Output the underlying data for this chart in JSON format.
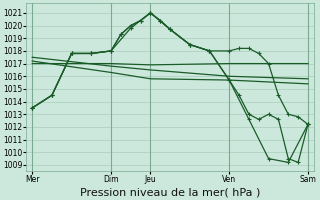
{
  "bg_color": "#cce8dc",
  "grid_color": "#aaccbb",
  "line_color": "#1a5c28",
  "xlabel": "Pression niveau de la mer( hPa )",
  "xlabel_fontsize": 8,
  "ylim": [
    1008.5,
    1021.8
  ],
  "yticks": [
    1009,
    1010,
    1011,
    1012,
    1013,
    1014,
    1015,
    1016,
    1017,
    1018,
    1019,
    1020,
    1021
  ],
  "xtick_labels": [
    "Mer",
    "Dim",
    "Jeu",
    "Ven",
    "Sam"
  ],
  "xtick_positions": [
    0,
    2,
    3,
    5,
    7
  ],
  "vline_positions": [
    0,
    2,
    3,
    5,
    7
  ],
  "series_main1": {
    "x": [
      0,
      0.5,
      1.0,
      1.5,
      2.0,
      2.25,
      2.5,
      2.75,
      3.0,
      3.25,
      3.5,
      4.0,
      4.5,
      5.0,
      5.25,
      5.5,
      5.75,
      6.0,
      6.25,
      6.5,
      6.75,
      7.0
    ],
    "y": [
      1013.5,
      1014.5,
      1017.8,
      1017.8,
      1018.0,
      1019.3,
      1020.0,
      1020.4,
      1021.0,
      1020.4,
      1019.7,
      1018.5,
      1018.0,
      1018.0,
      1018.2,
      1018.2,
      1017.8,
      1017.0,
      1014.5,
      1013.0,
      1012.8,
      1012.2
    ]
  },
  "series_flat": {
    "x": [
      0,
      2,
      3,
      5,
      7
    ],
    "y": [
      1017.0,
      1017.0,
      1016.9,
      1017.0,
      1017.0
    ]
  },
  "series_decline1": {
    "x": [
      0,
      2,
      3,
      5,
      7
    ],
    "y": [
      1017.5,
      1016.8,
      1016.5,
      1016.0,
      1015.8
    ]
  },
  "series_decline2": {
    "x": [
      0,
      2,
      3,
      5,
      7
    ],
    "y": [
      1017.2,
      1016.3,
      1015.8,
      1015.7,
      1015.4
    ]
  },
  "series_main2": {
    "x": [
      0,
      0.5,
      1.0,
      1.5,
      2.0,
      2.25,
      2.5,
      2.75,
      3.0,
      3.25,
      3.5,
      4.0,
      4.5,
      5.0,
      5.25,
      5.5,
      5.75,
      6.0,
      6.25,
      6.5,
      6.75,
      7.0
    ],
    "y": [
      1013.5,
      1014.5,
      1017.8,
      1017.8,
      1018.0,
      1019.3,
      1020.0,
      1020.4,
      1021.0,
      1020.4,
      1019.7,
      1018.5,
      1018.0,
      1015.7,
      1014.5,
      1013.0,
      1012.6,
      1013.0,
      1012.6,
      1009.5,
      1009.2,
      1012.2
    ]
  },
  "series_main3": {
    "x": [
      0,
      0.5,
      1.0,
      1.5,
      2.0,
      2.5,
      3.0,
      3.5,
      4.0,
      4.5,
      5.0,
      5.5,
      6.0,
      6.5,
      7.0
    ],
    "y": [
      1013.5,
      1014.5,
      1017.8,
      1017.8,
      1018.0,
      1019.8,
      1021.0,
      1019.7,
      1018.5,
      1018.0,
      1015.7,
      1012.6,
      1009.5,
      1009.2,
      1012.2
    ]
  }
}
